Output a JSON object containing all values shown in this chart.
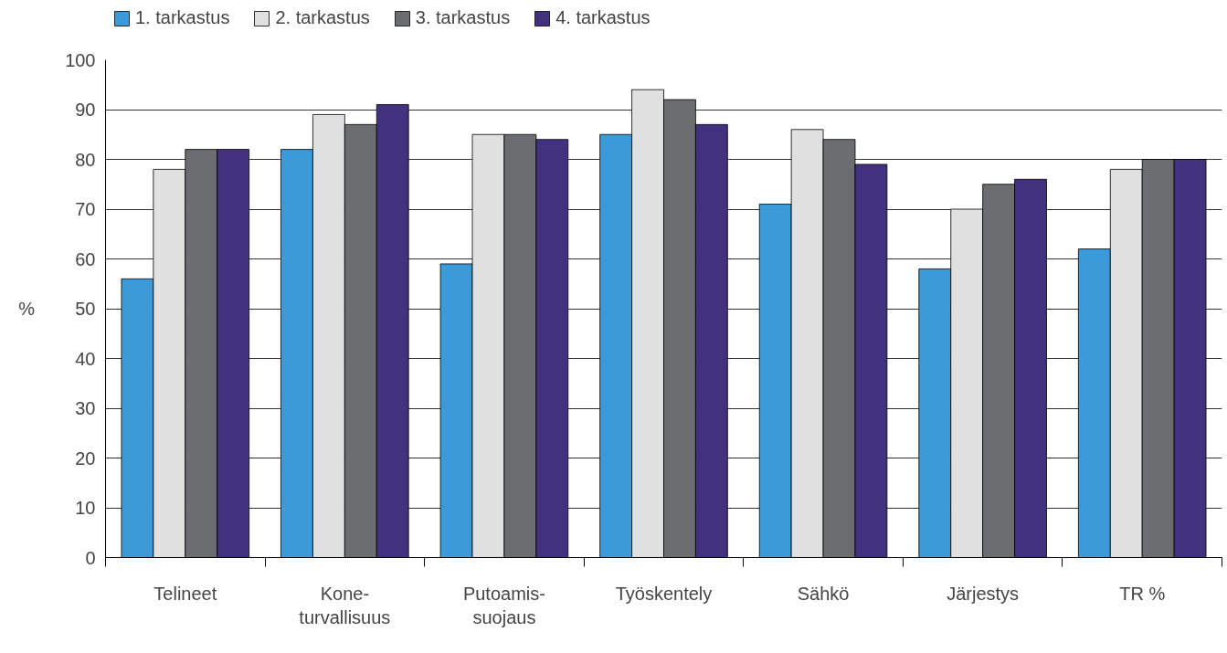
{
  "chart_data": {
    "type": "bar",
    "ylabel": "%",
    "categories": [
      "Telineet",
      "Kone-\nturvallisuus",
      "Putoamis-\nsuojaus",
      "Työskentely",
      "Sähkö",
      "Järjestys",
      "TR %"
    ],
    "series": [
      {
        "name": "1. tarkastus",
        "color": "#3d9ad9",
        "values": [
          56,
          82,
          59,
          85,
          71,
          58,
          62
        ]
      },
      {
        "name": "2. tarkastus",
        "color": "#e0e0e0",
        "values": [
          78,
          89,
          85,
          94,
          86,
          70,
          78
        ]
      },
      {
        "name": "3. tarkastus",
        "color": "#6b6d70",
        "values": [
          82,
          87,
          85,
          92,
          84,
          75,
          80
        ]
      },
      {
        "name": "4. tarkastus",
        "color": "#41317e",
        "values": [
          82,
          91,
          84,
          87,
          79,
          76,
          80
        ]
      }
    ],
    "ylim": [
      0,
      100
    ],
    "yticks": [
      0,
      10,
      20,
      30,
      40,
      50,
      60,
      70,
      80,
      90,
      100
    ],
    "grid": "y",
    "legend": "top left"
  }
}
